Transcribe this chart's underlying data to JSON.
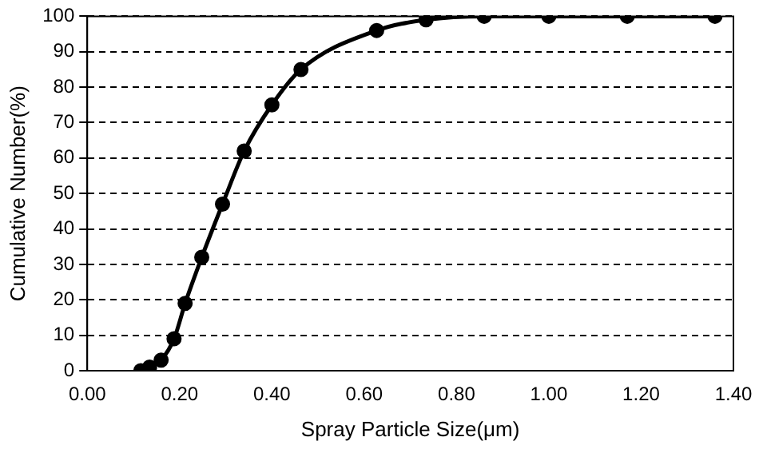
{
  "chart_data": {
    "type": "line",
    "xlabel": "Spray Particle Size(μm)",
    "ylabel": "Cumulative Number(%)",
    "x": [
      0.116,
      0.135,
      0.16,
      0.188,
      0.212,
      0.248,
      0.293,
      0.34,
      0.4,
      0.463,
      0.627,
      0.734,
      0.86,
      1.0,
      1.17,
      1.36
    ],
    "series": [
      {
        "color": "#000000",
        "values": [
          0,
          1,
          3,
          9,
          19,
          32,
          47,
          62,
          75,
          85,
          96,
          99,
          100,
          100,
          100,
          100
        ]
      }
    ],
    "xlim": [
      0,
      1.4
    ],
    "xticks": [
      {
        "value": 0,
        "label": "0.00"
      },
      {
        "value": 0.2,
        "label": "0.20"
      },
      {
        "value": 0.4,
        "label": "0.40"
      },
      {
        "value": 0.6,
        "label": "0.60"
      },
      {
        "value": 0.8,
        "label": "0.80"
      },
      {
        "value": 1,
        "label": "1.00"
      },
      {
        "value": 1.2,
        "label": "1.20"
      },
      {
        "value": 1.4,
        "label": "1.40"
      }
    ],
    "ylim": [
      0,
      100
    ],
    "yticks": [
      0,
      10,
      20,
      30,
      40,
      50,
      60,
      70,
      80,
      90,
      100
    ],
    "grid": "y",
    "marker": "circle",
    "line_style": "solid",
    "legend": false
  }
}
